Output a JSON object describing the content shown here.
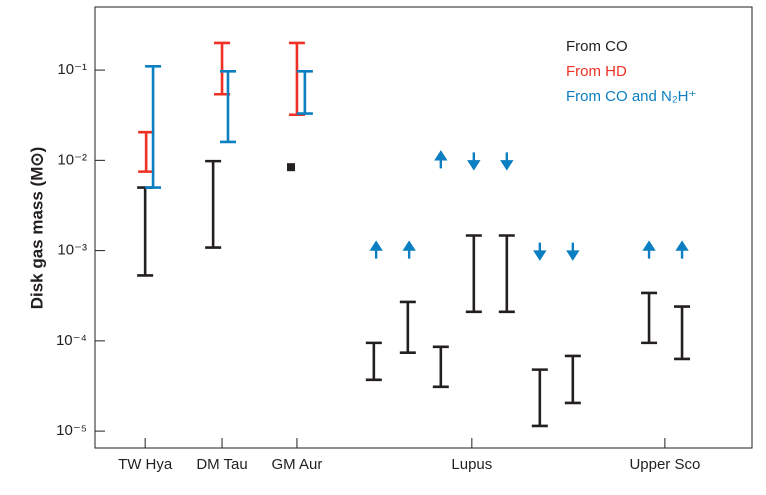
{
  "chart_data": {
    "type": "range-bar",
    "ylabel": "Disk gas mass (M⊙)",
    "log_y": true,
    "ylim": [
      6.5e-06,
      0.5
    ],
    "yticks": [
      {
        "value": 1e-05,
        "label": "10⁻⁵"
      },
      {
        "value": 0.0001,
        "label": "10⁻⁴"
      },
      {
        "value": 0.001,
        "label": "10⁻³"
      },
      {
        "value": 0.01,
        "label": "10⁻²"
      },
      {
        "value": 0.1,
        "label": "10⁻¹"
      }
    ],
    "xlim": [
      0,
      19.91
    ],
    "xticks": [
      {
        "value": 1.52,
        "label": "TW Hya"
      },
      {
        "value": 3.85,
        "label": "DM Tau"
      },
      {
        "value": 6.12,
        "label": "GM Aur"
      },
      {
        "value": 11.42,
        "label": "Lupus"
      },
      {
        "value": 17.27,
        "label": "Upper Sco"
      }
    ],
    "legend": "upper right",
    "series": [
      {
        "name": "From CO",
        "color": "#231f20",
        "x": [
          1.52,
          3.58,
          8.45,
          9.48,
          10.48,
          11.48,
          12.48,
          13.48,
          14.48,
          16.79,
          17.79
        ],
        "low": [
          0.00053,
          0.00108,
          3.7e-05,
          7.4e-05,
          3.1e-05,
          0.00021,
          0.00021,
          1.14e-05,
          2.05e-05,
          9.5e-05,
          6.3e-05
        ],
        "high": [
          0.005,
          0.0098,
          9.5e-05,
          0.00027,
          8.6e-05,
          0.00147,
          0.00147,
          4.8e-05,
          6.8e-05,
          0.00034,
          0.00024
        ],
        "points_x": [
          5.94
        ],
        "points_y": [
          0.0084
        ]
      },
      {
        "name": "From HD",
        "color": "#ee3124",
        "x": [
          1.55,
          3.85,
          6.12
        ],
        "low": [
          0.0075,
          0.054,
          0.032
        ],
        "high": [
          0.0205,
          0.2,
          0.2
        ]
      },
      {
        "name": "From CO and N₂H⁺",
        "color": "#0b7fc1",
        "x": [
          1.76,
          4.03,
          6.36
        ],
        "low": [
          0.005,
          0.016,
          0.033
        ],
        "high": [
          0.11,
          0.097,
          0.097
        ],
        "arrows_x": [
          8.52,
          9.52,
          10.48,
          11.48,
          12.48,
          13.48,
          14.48,
          16.79,
          17.79
        ],
        "arrows_y": [
          0.001,
          0.001,
          0.01,
          0.01,
          0.01,
          0.001,
          0.001,
          0.001,
          0.001
        ],
        "arrows_dir": [
          "up",
          "up",
          "up",
          "down",
          "down",
          "down",
          "down",
          "up",
          "up"
        ]
      }
    ]
  }
}
